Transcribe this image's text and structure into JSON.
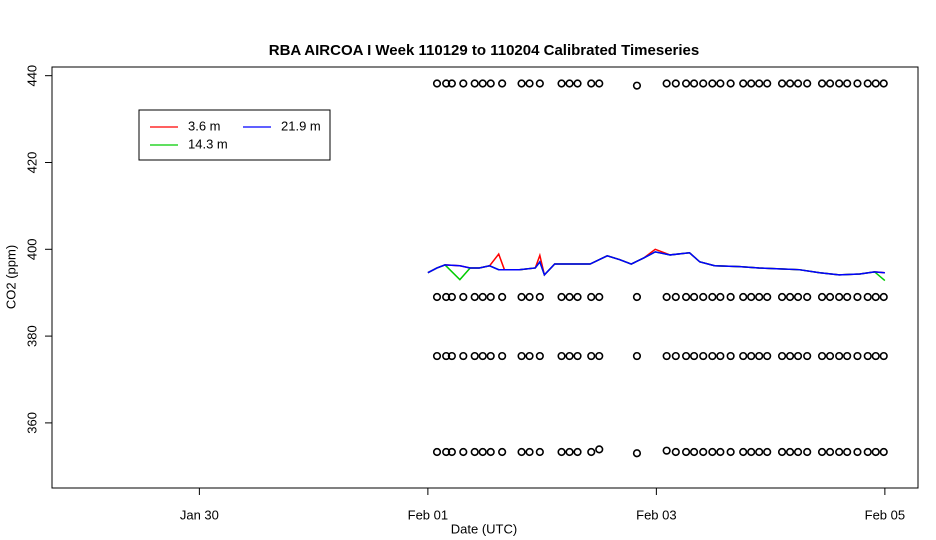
{
  "chart_data": {
    "type": "line",
    "title": "RBA AIRCOA I  Week 110129 to 110204  Calibrated Timeseries",
    "x_label": "Date (UTC)",
    "y_label": "CO2 (ppm)",
    "xlim": [
      28.71,
      36.29
    ],
    "xticks": [
      {
        "value": 30,
        "label": "Jan 30"
      },
      {
        "value": 32,
        "label": "Feb 01"
      },
      {
        "value": 34,
        "label": "Feb 03"
      },
      {
        "value": 36,
        "label": "Feb 05"
      }
    ],
    "ylim": [
      345,
      442
    ],
    "yticks": [
      360,
      380,
      400,
      420,
      440
    ],
    "legend": "top-left",
    "x": [
      32.0,
      32.08,
      32.15,
      32.28,
      32.37,
      32.45,
      32.54,
      32.62,
      32.67,
      32.8,
      32.94,
      32.98,
      33.02,
      33.11,
      33.24,
      33.42,
      33.57,
      33.68,
      33.78,
      33.89,
      33.99,
      34.12,
      34.29,
      34.38,
      34.51,
      34.73,
      34.9,
      35.08,
      35.25,
      35.43,
      35.6,
      35.78,
      35.91,
      36.0
    ],
    "series": [
      {
        "name": "3.6 m",
        "color": "#ff0000",
        "values": [
          394.6,
          395.7,
          396.4,
          396.2,
          395.7,
          395.7,
          396.2,
          398.9,
          395.3,
          395.3,
          395.7,
          398.6,
          394.1,
          396.6,
          396.6,
          396.6,
          398.5,
          397.6,
          396.6,
          398.0,
          400.0,
          398.7,
          399.2,
          397.1,
          396.2,
          396.0,
          395.7,
          395.5,
          395.3,
          394.6,
          394.1,
          394.3,
          394.8,
          394.6
        ]
      },
      {
        "name": "14.3 m",
        "color": "#00cc00",
        "values": [
          394.6,
          395.7,
          396.4,
          393.0,
          395.7,
          395.7,
          396.2,
          395.3,
          395.3,
          395.3,
          395.7,
          397.1,
          394.1,
          396.6,
          396.6,
          396.6,
          398.5,
          397.6,
          396.6,
          398.0,
          399.4,
          398.7,
          399.2,
          397.1,
          396.2,
          396.0,
          395.7,
          395.5,
          395.3,
          394.6,
          394.1,
          394.3,
          394.8,
          392.8
        ]
      },
      {
        "name": "21.9 m",
        "color": "#0000ff",
        "values": [
          394.6,
          395.7,
          396.4,
          396.2,
          395.7,
          395.7,
          396.2,
          395.3,
          395.3,
          395.3,
          395.7,
          397.1,
          394.1,
          396.6,
          396.6,
          396.6,
          398.5,
          397.6,
          396.6,
          398.0,
          399.4,
          398.7,
          399.2,
          397.1,
          396.2,
          396.0,
          395.7,
          395.5,
          395.3,
          394.6,
          394.1,
          394.3,
          394.8,
          394.6
        ]
      }
    ],
    "points": {
      "color": "#000000",
      "x": [
        32.08,
        32.16,
        32.21,
        32.31,
        32.41,
        32.48,
        32.55,
        32.65,
        32.82,
        32.89,
        32.98,
        33.17,
        33.24,
        33.31,
        33.43,
        33.5,
        33.83,
        34.09,
        34.17,
        34.26,
        34.33,
        34.41,
        34.49,
        34.56,
        34.65,
        34.76,
        34.83,
        34.9,
        34.97,
        35.1,
        35.17,
        35.24,
        35.32,
        35.45,
        35.52,
        35.6,
        35.67,
        35.76,
        35.85,
        35.92,
        35.99
      ],
      "series": [
        {
          "values": [
            438.2,
            438.2,
            438.2,
            438.2,
            438.2,
            438.2,
            438.2,
            438.2,
            438.2,
            438.2,
            438.2,
            438.2,
            438.2,
            438.2,
            438.2,
            438.2,
            437.7,
            438.2,
            438.2,
            438.2,
            438.2,
            438.2,
            438.2,
            438.2,
            438.2,
            438.2,
            438.2,
            438.2,
            438.2,
            438.2,
            438.2,
            438.2,
            438.2,
            438.2,
            438.2,
            438.2,
            438.2,
            438.2,
            438.2,
            438.2,
            438.2
          ]
        },
        {
          "values": [
            389.0,
            389.0,
            389.0,
            389.0,
            389.0,
            389.0,
            389.0,
            389.0,
            389.0,
            389.0,
            389.0,
            389.0,
            389.0,
            389.0,
            389.0,
            389.0,
            389.0,
            389.0,
            389.0,
            389.0,
            389.0,
            389.0,
            389.0,
            389.0,
            389.0,
            389.0,
            389.0,
            389.0,
            389.0,
            389.0,
            389.0,
            389.0,
            389.0,
            389.0,
            389.0,
            389.0,
            389.0,
            389.0,
            389.0,
            389.0,
            389.0
          ]
        },
        {
          "values": [
            375.4,
            375.4,
            375.4,
            375.4,
            375.4,
            375.4,
            375.4,
            375.4,
            375.4,
            375.4,
            375.4,
            375.4,
            375.4,
            375.4,
            375.4,
            375.4,
            375.4,
            375.4,
            375.4,
            375.4,
            375.4,
            375.4,
            375.4,
            375.4,
            375.4,
            375.4,
            375.4,
            375.4,
            375.4,
            375.4,
            375.4,
            375.4,
            375.4,
            375.4,
            375.4,
            375.4,
            375.4,
            375.4,
            375.4,
            375.4,
            375.4
          ]
        },
        {
          "values": [
            353.3,
            353.3,
            353.3,
            353.3,
            353.3,
            353.3,
            353.3,
            353.3,
            353.3,
            353.3,
            353.3,
            353.3,
            353.3,
            353.3,
            353.3,
            353.9,
            353.0,
            353.6,
            353.3,
            353.3,
            353.3,
            353.3,
            353.3,
            353.3,
            353.3,
            353.3,
            353.3,
            353.3,
            353.3,
            353.3,
            353.3,
            353.3,
            353.3,
            353.3,
            353.3,
            353.3,
            353.3,
            353.3,
            353.3,
            353.3,
            353.3
          ]
        }
      ]
    }
  }
}
